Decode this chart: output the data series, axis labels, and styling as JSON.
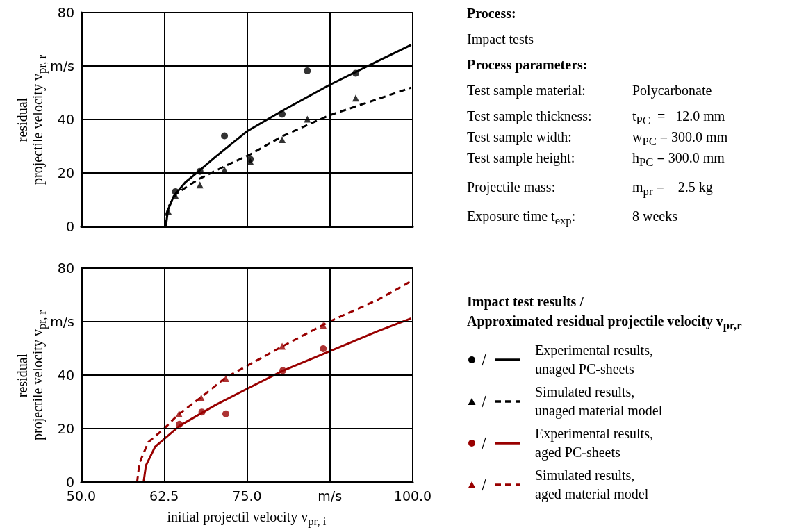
{
  "chart_data": [
    {
      "type": "scatter",
      "ylabel": "residual\nprojectile velocity v$_{pr, r}$",
      "xlim": [
        50,
        100
      ],
      "ylim": [
        0,
        80
      ],
      "xticks": [
        50,
        62.5,
        75,
        87.5,
        100
      ],
      "yticks": [
        0,
        20,
        40,
        {
          "value": 60,
          "label": "m/s"
        },
        80
      ],
      "tick_labels": "y",
      "grid": true,
      "legend": "right",
      "legend_title": "Impact test results /\nApproximated residual projectile velocity v$_{pr,r}$",
      "series": [
        {
          "name": "Experimental results, unaged PC-sheets",
          "color": "#000000",
          "type": "scatter",
          "marker": "circle",
          "x": [
            64.2,
            67.9,
            71.6,
            75.5,
            80.3,
            84.1,
            91.4
          ],
          "values": [
            13.0,
            20.6,
            33.9,
            25.1,
            42.0,
            58.2,
            57.3
          ]
        },
        {
          "color": "#000000",
          "type": "line",
          "marker": "none",
          "line_style": "solid",
          "x": [
            62.76,
            63.07,
            63.94,
            65.69,
            67.79,
            70.23,
            74.95,
            80.37,
            87.35,
            94.69,
            99.76
          ],
          "values": [
            0,
            6.1,
            11.3,
            16.5,
            20.8,
            26.0,
            35.5,
            43.3,
            52.8,
            61.8,
            67.9
          ]
        },
        {
          "name": "Simulated results, unaged material model",
          "color": "#000000",
          "type": "scatter",
          "marker": "triangle",
          "x": [
            63.1,
            64.2,
            67.9,
            71.6,
            75.5,
            80.3,
            84.1,
            91.4
          ],
          "values": [
            5.7,
            11.5,
            15.5,
            21.2,
            24.3,
            32.5,
            40.1,
            48.0
          ]
        },
        {
          "color": "#000000",
          "type": "line",
          "marker": "none",
          "line_style": "dashed",
          "x": [
            62.65,
            63.07,
            64.29,
            67.79,
            71.63,
            75.47,
            80.37,
            87.35,
            94.69,
            99.76
          ],
          "values": [
            0,
            7.0,
            12.2,
            17.8,
            22.5,
            26.9,
            33.8,
            41.5,
            47.6,
            51.9
          ]
        }
      ]
    },
    {
      "type": "scatter",
      "ylabel": "residual\nprojectile velocity v$_{pr, r}$",
      "xlabel": "initial projectil velocity v$_{pr, i}$",
      "xlim": [
        50,
        100
      ],
      "ylim": [
        0,
        80
      ],
      "xticks": [
        {
          "value": 50,
          "label": "50.0"
        },
        62.5,
        {
          "value": 75,
          "label": "75.0"
        },
        {
          "value": 87.5,
          "label": "m/s"
        },
        {
          "value": 100,
          "label": "100.0"
        }
      ],
      "yticks": [
        0,
        20,
        40,
        {
          "value": 60,
          "label": "m/s"
        },
        80
      ],
      "grid": true,
      "legend": "right",
      "series": [
        {
          "name": "Experimental results, aged PC-sheets",
          "color": "#990000",
          "type": "scatter",
          "marker": "circle",
          "x": [
            64.8,
            68.2,
            71.8,
            80.4,
            86.5
          ],
          "values": [
            21.6,
            26.2,
            25.5,
            41.7,
            49.9
          ]
        },
        {
          "color": "#990000",
          "type": "line",
          "marker": "none",
          "line_style": "solid",
          "x": [
            59.4,
            59.75,
            61.14,
            64.81,
            70.23,
            74.95,
            80.37,
            87.35,
            94.69,
            99.76
          ],
          "values": [
            0,
            6.2,
            13.2,
            21.0,
            28.8,
            34.8,
            41.6,
            48.8,
            56.4,
            61.2
          ]
        },
        {
          "name": "Simulated results, aged material model",
          "color": "#990000",
          "type": "scatter",
          "marker": "triangle",
          "x": [
            64.75,
            68.1,
            71.8,
            80.3,
            86.5
          ],
          "values": [
            25.5,
            31.5,
            38.7,
            50.8,
            58.6
          ]
        },
        {
          "color": "#990000",
          "type": "line",
          "marker": "none",
          "line_style": "dashed",
          "x": [
            58.42,
            58.77,
            60.1,
            62.55,
            64.64,
            68.13,
            71.8,
            80.37,
            87.35,
            94.69,
            99.76
          ],
          "values": [
            0,
            7.1,
            14.9,
            20.1,
            25.3,
            31.8,
            39.1,
            50.8,
            59.9,
            68.1,
            75.1
          ]
        }
      ]
    },
    {
      "type": "other",
      "title": "Process:",
      "subtitle": "Process parameters:",
      "annotations": [
        "Impact tests",
        "Test sample material: Polycarbonate",
        "Test sample thickness: t$_{PC}$  =   12.0 mm",
        "Test sample width: w$_{PC}$ = 300.0 mm",
        "Test sample height: h$_{PC}$ = 300.0 mm",
        "Projectile mass: m$_{pr}$ =    2.5 kg",
        "Exposure time t$_{exp}$: 8 weeks"
      ]
    }
  ]
}
